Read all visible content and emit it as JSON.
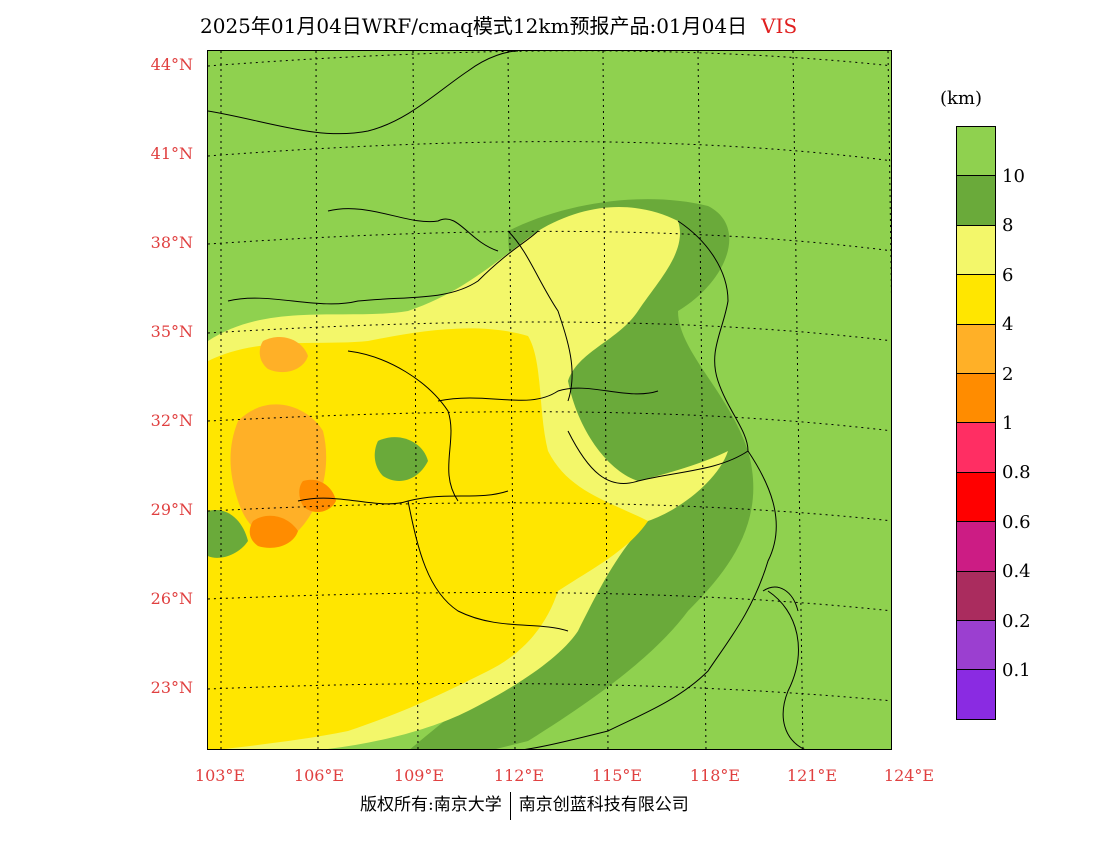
{
  "title": {
    "main": "2025年01月04日WRF/cmaq模式12km预报产品:01月04日",
    "variable": "VIS"
  },
  "legend": {
    "unit": "(km)",
    "colors": [
      "#8fd14f",
      "#6aaa3a",
      "#f3f76a",
      "#ffe600",
      "#ffb027",
      "#ff8c00",
      "#ff2e63",
      "#ff0000",
      "#cc1c84",
      "#aa2c5e",
      "#9b3fd0",
      "#8a2be2"
    ],
    "labels": [
      "10",
      "8",
      "6",
      "4",
      "2",
      "1",
      "0.8",
      "0.6",
      "0.4",
      "0.2",
      "0.1"
    ]
  },
  "axes": {
    "lat_labels": [
      "44°N",
      "41°N",
      "38°N",
      "35°N",
      "32°N",
      "29°N",
      "26°N",
      "23°N"
    ],
    "lon_labels": [
      "103°E",
      "106°E",
      "109°E",
      "112°E",
      "115°E",
      "118°E",
      "121°E",
      "124°E"
    ]
  },
  "footer": {
    "left": "版权所有:南京大学",
    "right": "南京创蓝科技有限公司"
  }
}
